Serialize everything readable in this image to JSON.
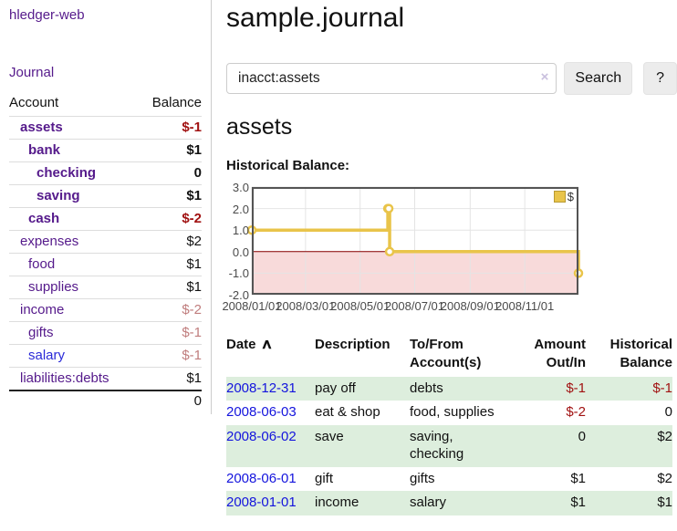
{
  "colors": {
    "link_purple": "#551a8b",
    "link_blue": "#1414dd",
    "negative_strong": "#a11212",
    "negative_soft": "#c07d7d",
    "stripe_green": "#ddeedd"
  },
  "sidebar": {
    "brand": "hledger-web",
    "journal_link": "Journal",
    "accounts": {
      "headers": {
        "account": "Account",
        "balance": "Balance"
      },
      "rows": [
        {
          "name": "assets",
          "depth": 1,
          "emph": true,
          "blue": false,
          "balance": "$-1",
          "balance_class": "neg-strong"
        },
        {
          "name": "bank",
          "depth": 2,
          "emph": true,
          "blue": false,
          "balance": "$1",
          "balance_class": ""
        },
        {
          "name": "checking",
          "depth": 3,
          "emph": true,
          "blue": false,
          "balance": "0",
          "balance_class": ""
        },
        {
          "name": "saving",
          "depth": 3,
          "emph": true,
          "blue": false,
          "balance": "$1",
          "balance_class": ""
        },
        {
          "name": "cash",
          "depth": 2,
          "emph": true,
          "blue": false,
          "balance": "$-2",
          "balance_class": "neg-strong"
        },
        {
          "name": "expenses",
          "depth": 1,
          "emph": false,
          "blue": false,
          "balance": "$2",
          "balance_class": ""
        },
        {
          "name": "food",
          "depth": 2,
          "emph": false,
          "blue": false,
          "balance": "$1",
          "balance_class": ""
        },
        {
          "name": "supplies",
          "depth": 2,
          "emph": false,
          "blue": false,
          "balance": "$1",
          "balance_class": ""
        },
        {
          "name": "income",
          "depth": 1,
          "emph": false,
          "blue": false,
          "balance": "$-2",
          "balance_class": "neg-soft"
        },
        {
          "name": "gifts",
          "depth": 2,
          "emph": false,
          "blue": false,
          "balance": "$-1",
          "balance_class": "neg-soft"
        },
        {
          "name": "salary",
          "depth": 2,
          "emph": false,
          "blue": true,
          "balance": "$-1",
          "balance_class": "neg-soft"
        },
        {
          "name": "liabilities:debts",
          "depth": 1,
          "emph": false,
          "blue": false,
          "balance": "$1",
          "balance_class": ""
        }
      ],
      "total": "0"
    }
  },
  "main": {
    "title": "sample.journal",
    "search": {
      "value": "inacct:assets",
      "clear_icon": "×",
      "button": "Search",
      "help_button": "?"
    },
    "account_heading": "assets",
    "register": {
      "headers": [
        "Date",
        "Description",
        "To/From\nAccount(s)",
        "Amount\nOut/In",
        "Historical\nBalance"
      ],
      "sort_icon": "∧",
      "rows": [
        {
          "date": "2008-12-31",
          "description": "pay off",
          "to_from": "debts",
          "amount": "$-1",
          "amount_neg": true,
          "balance": "$-1",
          "balance_neg": true
        },
        {
          "date": "2008-06-03",
          "description": "eat & shop",
          "to_from": "food, supplies",
          "amount": "$-2",
          "amount_neg": true,
          "balance": "0",
          "balance_neg": false
        },
        {
          "date": "2008-06-02",
          "description": "save",
          "to_from": "saving,\nchecking",
          "amount": "0",
          "amount_neg": false,
          "balance": "$2",
          "balance_neg": false
        },
        {
          "date": "2008-06-01",
          "description": "gift",
          "to_from": "gifts",
          "amount": "$1",
          "amount_neg": false,
          "balance": "$2",
          "balance_neg": false
        },
        {
          "date": "2008-01-01",
          "description": "income",
          "to_from": "salary",
          "amount": "$1",
          "amount_neg": false,
          "balance": "$1",
          "balance_neg": false
        }
      ]
    }
  },
  "chart_data": {
    "type": "line",
    "step": true,
    "title": "Historical Balance:",
    "series": [
      {
        "name": "$",
        "points": [
          [
            "2008-01-01",
            1
          ],
          [
            "2008-06-01",
            2
          ],
          [
            "2008-06-02",
            2
          ],
          [
            "2008-06-03",
            0
          ],
          [
            "2008-12-31",
            -1
          ]
        ]
      }
    ],
    "x_range": [
      "2008-01-01",
      "2008-12-31"
    ],
    "ylim": [
      -2.0,
      3.0
    ],
    "xticks": [
      "2008/01/01",
      "2008/03/01",
      "2008/05/01",
      "2008/07/01",
      "2008/09/01",
      "2008/11/01"
    ],
    "yticks": [
      "3.0",
      "2.0",
      "1.0",
      "0.0",
      "-1.0",
      "-2.0"
    ],
    "legend": {
      "label": "$",
      "position": "top-right"
    },
    "grid": true,
    "colors": {
      "series": "#e9c44a",
      "marker_fill": "#ffffff",
      "negative_region": "#f8dada",
      "zero_line": "#8b0000",
      "gridline": "#e4e4e4",
      "plot_border": "#545454"
    }
  }
}
